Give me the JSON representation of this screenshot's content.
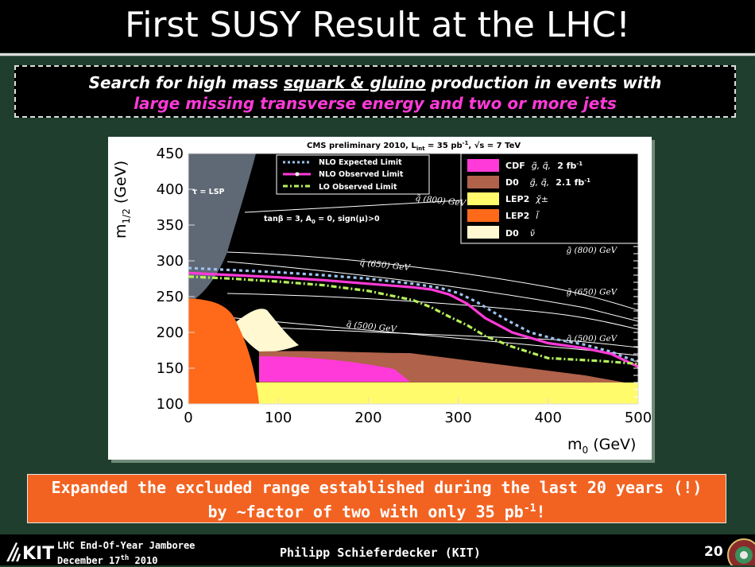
{
  "slide": {
    "title": "First SUSY Result at the LHC!",
    "subtitle_line1_pre": "Search for high mass ",
    "subtitle_line1_u": "squark & gluino",
    "subtitle_line1_post": " production in events with",
    "subtitle_line2": "large missing transverse energy and two or more jets",
    "conclusion_line1": "Expanded the excluded range established during the last 20 years (!)",
    "conclusion_line2_pre": "by ~factor of two with only 35 pb",
    "conclusion_line2_sup": "-1",
    "conclusion_line2_post": "!",
    "footer_event_line1": "LHC End-Of-Year Jamboree",
    "footer_event_line2_pre": "December 17",
    "footer_event_line2_sup": "th",
    "footer_event_line2_post": " 2010",
    "footer_author": "Philipp Schieferdecker (KIT)",
    "page_number": "20",
    "logo_text": "KIT"
  },
  "chart_data": {
    "type": "line",
    "title": "CMS preliminary 2010, L",
    "title_sub": "int",
    "title_rest": " = 35 pb",
    "title_sup": "-1",
    "title_tail": ", √s = 7 TeV",
    "xlabel": "m",
    "xlabel_sub": "0",
    "xlabel_unit": " (GeV)",
    "ylabel": "m",
    "ylabel_sub": "1/2",
    "ylabel_unit": " (GeV)",
    "xlim": [
      0,
      500
    ],
    "ylim": [
      100,
      450
    ],
    "x_ticks": [
      0,
      100,
      200,
      300,
      400,
      500
    ],
    "y_ticks": [
      100,
      150,
      200,
      250,
      300,
      350,
      400,
      450
    ],
    "params_text": "tanβ = 3, A",
    "params_sub": "0",
    "params_rest": " = 0, sign(μ)>0",
    "lsp_text": "τ = LSP",
    "series": [
      {
        "name": "NLO Expected Limit",
        "style": "dashed",
        "color": "#9ac3f0",
        "x": [
          0,
          50,
          100,
          150,
          200,
          250,
          280,
          300,
          320,
          350,
          380,
          410,
          440,
          470,
          490,
          500
        ],
        "y": [
          290,
          287,
          284,
          280,
          275,
          268,
          262,
          255,
          243,
          220,
          200,
          190,
          183,
          173,
          163,
          160
        ]
      },
      {
        "name": "NLO Observed Limit",
        "style": "solid",
        "color": "#ff3ad8",
        "x": [
          0,
          50,
          100,
          150,
          200,
          250,
          270,
          290,
          310,
          330,
          360,
          400,
          440,
          470,
          490,
          500
        ],
        "y": [
          283,
          280,
          277,
          273,
          268,
          263,
          260,
          253,
          240,
          220,
          200,
          185,
          178,
          170,
          158,
          152
        ]
      },
      {
        "name": "LO Observed Limit",
        "style": "dashdot",
        "color": "#b6f05a",
        "x": [
          0,
          50,
          100,
          150,
          200,
          250,
          270,
          290,
          310,
          330,
          360,
          400,
          430,
          460,
          490,
          500
        ],
        "y": [
          278,
          275,
          271,
          266,
          258,
          245,
          235,
          222,
          210,
          195,
          180,
          164,
          162,
          160,
          157,
          156
        ]
      }
    ],
    "excluded_regions": [
      {
        "name": "CDF",
        "label_particles": "g̃, q̃,",
        "label_lumi": "2 fb",
        "label_lumi_sup": "-1",
        "color": "#ff3ad8"
      },
      {
        "name": "D0",
        "label_particles": "g̃, q̃,",
        "label_lumi": "2.1 fb",
        "label_lumi_sup": "-1",
        "color": "#b0624a"
      },
      {
        "name": "LEP2",
        "label_particles": "χ̃±",
        "label_lumi": "",
        "label_lumi_sup": "",
        "color": "#fffb6b"
      },
      {
        "name": "LEP2",
        "label_particles": "l̃",
        "label_lumi": "",
        "label_lumi_sup": "",
        "color": "#ff6a1a"
      },
      {
        "name": "D0",
        "label_particles": "ν̃",
        "label_lumi": "",
        "label_lumi_sup": "",
        "color": "#fff8d0"
      }
    ],
    "annotations": [
      {
        "text": "q̃ (800) GeV",
        "x": 252,
        "y": 384
      },
      {
        "text": "q̃ (650) GeV",
        "x": 190,
        "y": 294
      },
      {
        "text": "q̃ (500) GeV",
        "x": 175,
        "y": 208
      },
      {
        "text": "g̃ (800) GeV",
        "x": 420,
        "y": 311
      },
      {
        "text": "g̃ (650) GeV",
        "x": 420,
        "y": 253
      },
      {
        "text": "g̃ (500) GeV",
        "x": 420,
        "y": 188
      }
    ],
    "grid": false,
    "legend": "top"
  },
  "colors": {
    "slide_bg": "#1f3e2d",
    "accent_pink": "#ff3ad8",
    "accent_orange": "#f26322"
  }
}
